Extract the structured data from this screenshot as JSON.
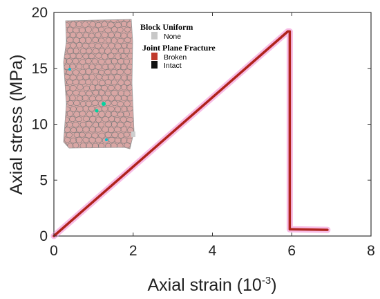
{
  "chart_data": {
    "type": "line",
    "title": "",
    "xlabel": "Axial strain (10",
    "xlabel_sup": "-3",
    "xlabel_end": ")",
    "ylabel": "Axial stress (MPa)",
    "xlim": [
      0,
      8
    ],
    "ylim": [
      0,
      20
    ],
    "xticks": [
      "0",
      "2",
      "4",
      "6",
      "8"
    ],
    "yticks": [
      "0",
      "5",
      "10",
      "15",
      "20"
    ],
    "grid": false,
    "series": [
      {
        "color": "#b0231c",
        "halo_color": "#f4a6dc",
        "x": [
          0,
          5.9,
          5.95,
          5.95,
          6.0,
          6.9
        ],
        "y": [
          0,
          18.3,
          18.3,
          0.6,
          0.6,
          0.55
        ]
      }
    ],
    "legend": {
      "placement": "top-left inset",
      "groups": [
        {
          "title": "Block Uniform",
          "items": [
            {
              "label": "None",
              "color": "#c8c8c8"
            }
          ]
        },
        {
          "title": "Joint Plane Fracture",
          "items": [
            {
              "label": "Broken",
              "color": "#c0392b"
            },
            {
              "label": "Intact",
              "color": "#111111"
            }
          ]
        }
      ]
    },
    "inset_image": {
      "description_icon": "voronoi-specimen",
      "fill_color": "#d9a6a4",
      "edge_color": "#7a7a7a"
    }
  }
}
